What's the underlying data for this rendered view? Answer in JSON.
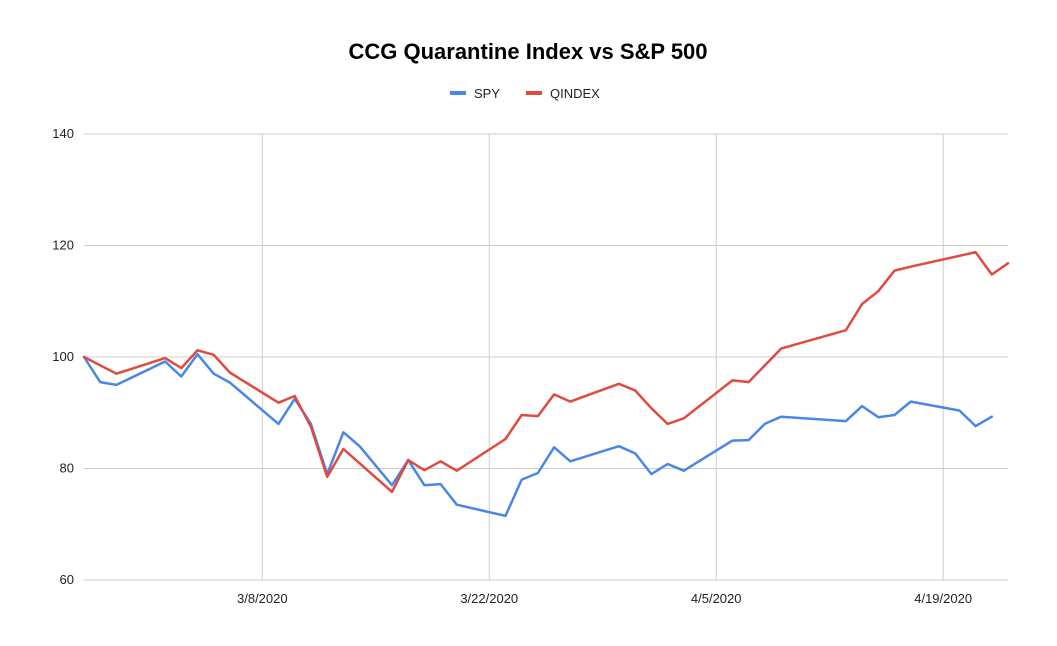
{
  "chart_data": {
    "type": "line",
    "title": "CCG Quarantine Index vs S&P 500",
    "xlabel": "",
    "ylabel": "",
    "ylim": [
      60,
      140
    ],
    "yticks": [
      "60",
      "80",
      "100",
      "120",
      "140"
    ],
    "xticks": [
      "3/8/2020",
      "3/22/2020",
      "4/5/2020",
      "4/19/2020"
    ],
    "xlim": [
      "2020-02-26",
      "2020-04-23"
    ],
    "grid": true,
    "legend_position": "top",
    "series": [
      {
        "name": "SPY",
        "color": "#4a86e8",
        "points": [
          [
            "2020-02-26",
            100
          ],
          [
            "2020-02-27",
            95.5
          ],
          [
            "2020-02-28",
            95.0
          ],
          [
            "2020-03-02",
            99.2
          ],
          [
            "2020-03-03",
            96.5
          ],
          [
            "2020-03-04",
            100.5
          ],
          [
            "2020-03-05",
            97.0
          ],
          [
            "2020-03-06",
            95.4
          ],
          [
            "2020-03-09",
            88.0
          ],
          [
            "2020-03-10",
            92.5
          ],
          [
            "2020-03-11",
            88.0
          ],
          [
            "2020-03-12",
            79.0
          ],
          [
            "2020-03-13",
            86.5
          ],
          [
            "2020-03-14",
            84.0
          ],
          [
            "2020-03-16",
            77.0
          ],
          [
            "2020-03-17",
            81.5
          ],
          [
            "2020-03-18",
            77.0
          ],
          [
            "2020-03-19",
            77.2
          ],
          [
            "2020-03-20",
            73.5
          ],
          [
            "2020-03-23",
            71.5
          ],
          [
            "2020-03-24",
            78.0
          ],
          [
            "2020-03-25",
            79.2
          ],
          [
            "2020-03-26",
            83.8
          ],
          [
            "2020-03-27",
            81.3
          ],
          [
            "2020-03-30",
            84.0
          ],
          [
            "2020-03-31",
            82.7
          ],
          [
            "2020-04-01",
            79.0
          ],
          [
            "2020-04-02",
            80.8
          ],
          [
            "2020-04-03",
            79.6
          ],
          [
            "2020-04-06",
            85.0
          ],
          [
            "2020-04-07",
            85.1
          ],
          [
            "2020-04-08",
            88.0
          ],
          [
            "2020-04-09",
            89.3
          ],
          [
            "2020-04-13",
            88.5
          ],
          [
            "2020-04-14",
            91.2
          ],
          [
            "2020-04-15",
            89.2
          ],
          [
            "2020-04-16",
            89.6
          ],
          [
            "2020-04-17",
            92.0
          ],
          [
            "2020-04-20",
            90.4
          ],
          [
            "2020-04-21",
            87.6
          ],
          [
            "2020-04-22",
            89.3
          ]
        ]
      },
      {
        "name": "QINDEX",
        "color": "#e04a3f",
        "points": [
          [
            "2020-02-26",
            100
          ],
          [
            "2020-02-28",
            97.0
          ],
          [
            "2020-03-02",
            99.8
          ],
          [
            "2020-03-03",
            98.0
          ],
          [
            "2020-03-04",
            101.2
          ],
          [
            "2020-03-05",
            100.4
          ],
          [
            "2020-03-06",
            97.2
          ],
          [
            "2020-03-09",
            91.8
          ],
          [
            "2020-03-10",
            93.0
          ],
          [
            "2020-03-11",
            87.5
          ],
          [
            "2020-03-12",
            78.5
          ],
          [
            "2020-03-13",
            83.5
          ],
          [
            "2020-03-16",
            75.8
          ],
          [
            "2020-03-17",
            81.5
          ],
          [
            "2020-03-18",
            79.7
          ],
          [
            "2020-03-19",
            81.3
          ],
          [
            "2020-03-20",
            79.6
          ],
          [
            "2020-03-23",
            85.3
          ],
          [
            "2020-03-24",
            89.6
          ],
          [
            "2020-03-25",
            89.4
          ],
          [
            "2020-03-26",
            93.3
          ],
          [
            "2020-03-27",
            92.0
          ],
          [
            "2020-03-30",
            95.2
          ],
          [
            "2020-03-31",
            94.0
          ],
          [
            "2020-04-01",
            90.8
          ],
          [
            "2020-04-02",
            88.0
          ],
          [
            "2020-04-03",
            89.0
          ],
          [
            "2020-04-06",
            95.8
          ],
          [
            "2020-04-07",
            95.5
          ],
          [
            "2020-04-09",
            101.5
          ],
          [
            "2020-04-13",
            104.8
          ],
          [
            "2020-04-14",
            109.5
          ],
          [
            "2020-04-15",
            111.8
          ],
          [
            "2020-04-16",
            115.5
          ],
          [
            "2020-04-17",
            116.2
          ],
          [
            "2020-04-21",
            118.8
          ],
          [
            "2020-04-22",
            114.8
          ],
          [
            "2020-04-23",
            116.8
          ]
        ]
      }
    ]
  }
}
